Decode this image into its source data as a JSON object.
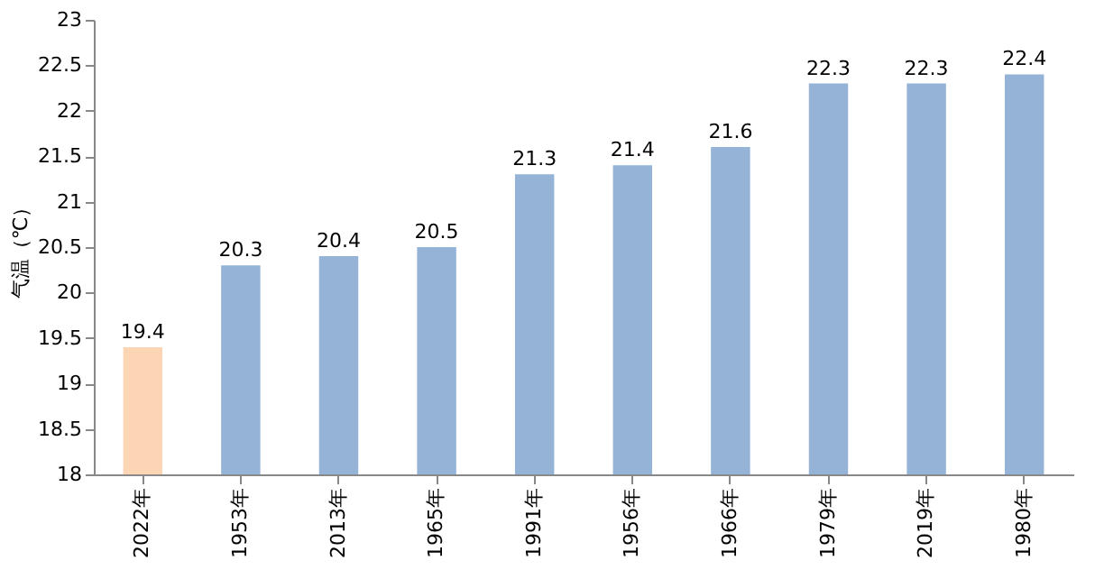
{
  "chart_data": {
    "type": "bar",
    "ylabel": "气温（℃）",
    "categories": [
      "2022年",
      "1953年",
      "2013年",
      "1965年",
      "1991年",
      "1956年",
      "1966年",
      "1979年",
      "2019年",
      "1980年"
    ],
    "values": [
      19.4,
      20.3,
      20.4,
      20.5,
      21.3,
      21.4,
      21.6,
      22.3,
      22.3,
      22.4
    ],
    "colors": [
      "#fcd5b5",
      "#95b3d7",
      "#95b3d7",
      "#95b3d7",
      "#95b3d7",
      "#95b3d7",
      "#95b3d7",
      "#95b3d7",
      "#95b3d7",
      "#95b3d7"
    ],
    "ylim": [
      18,
      23
    ],
    "yticks": [
      18,
      18.5,
      19,
      19.5,
      20,
      20.5,
      21,
      21.5,
      22,
      22.5,
      23
    ],
    "data_labels": true,
    "grid": false
  }
}
